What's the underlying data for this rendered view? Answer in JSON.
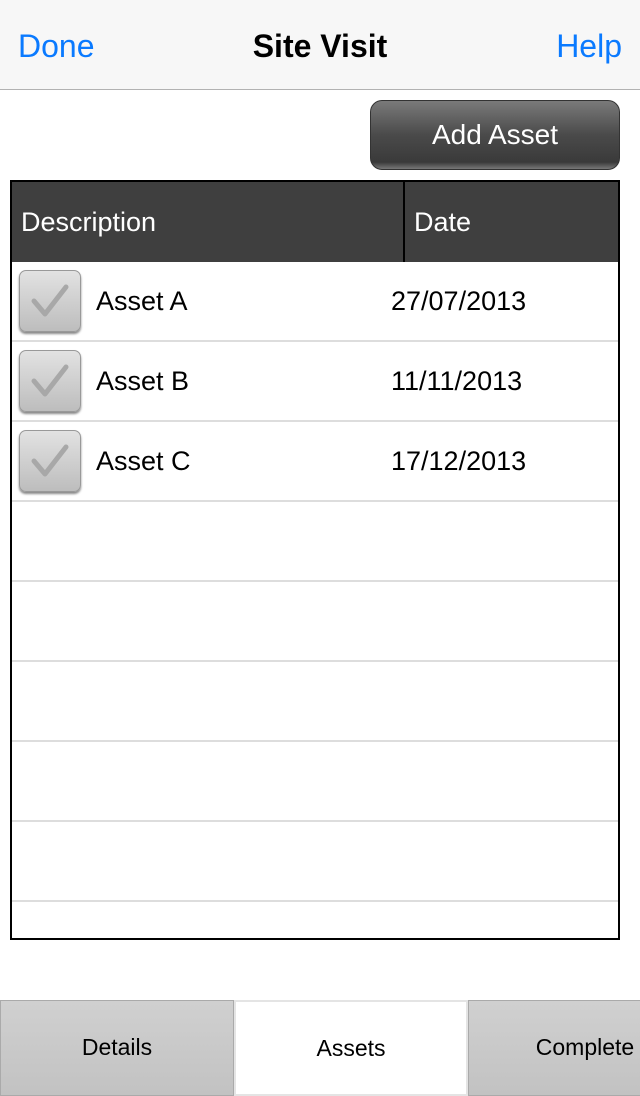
{
  "nav": {
    "title": "Site Visit",
    "done": "Done",
    "help": "Help"
  },
  "toolbar": {
    "add_asset": "Add Asset"
  },
  "table": {
    "headers": [
      "Description",
      "Date"
    ],
    "rows": [
      {
        "description": "Asset A",
        "date": "27/07/2013",
        "checked": true
      },
      {
        "description": "Asset B",
        "date": "11/11/2013",
        "checked": true
      },
      {
        "description": "Asset C",
        "date": "17/12/2013",
        "checked": true
      }
    ]
  },
  "tabs": [
    {
      "label": "Details"
    },
    {
      "label": "Assets",
      "active": true
    },
    {
      "label": "Complete"
    }
  ],
  "colors": {
    "accent": "#0a7aff",
    "header_bg": "#3f3f3f"
  }
}
